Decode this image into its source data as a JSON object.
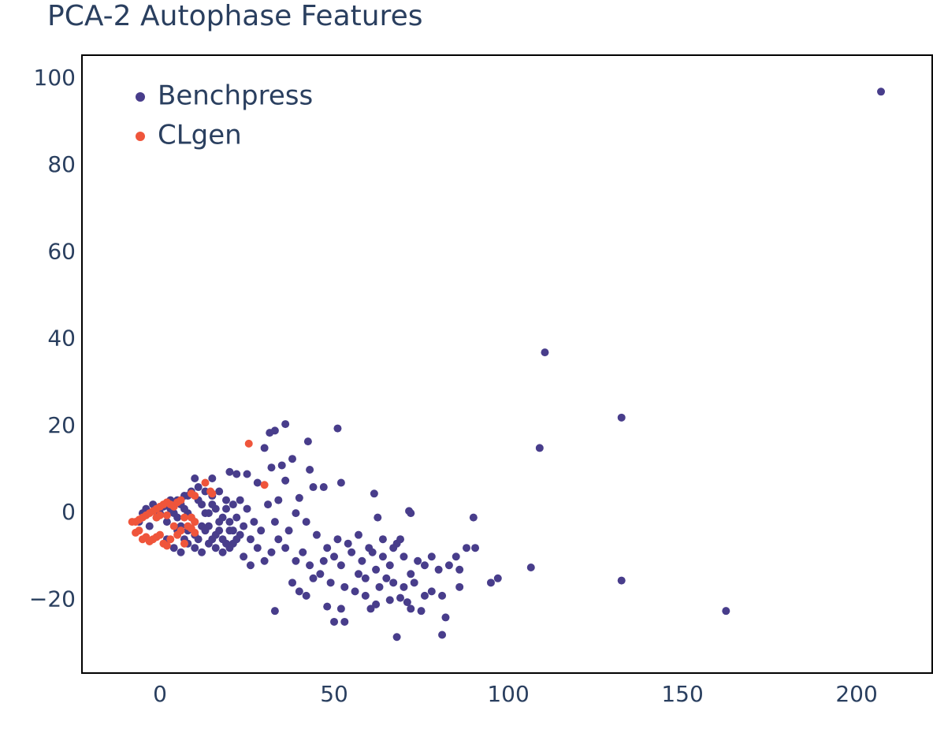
{
  "chart_data": {
    "type": "scatter",
    "title": "PCA-2 Autophase Features",
    "xlim": [
      -22.4,
      221.7
    ],
    "ylim": [
      -36.8,
      105.4
    ],
    "xticks": [
      0,
      50,
      100,
      150,
      200
    ],
    "yticks": [
      {
        "value": -20,
        "label": "−20"
      },
      0,
      20,
      40,
      60,
      80,
      100
    ],
    "grid": false,
    "legend": "top left",
    "series": [
      {
        "name": "Benchpress",
        "color": "#483d8b",
        "x": [
          207,
          110.5,
          132.5,
          109,
          132.5,
          162.5,
          106.5,
          97,
          95,
          90,
          90.5,
          88,
          86,
          86,
          81,
          68,
          82,
          81,
          33,
          50,
          53,
          48,
          52,
          62,
          66,
          69,
          72,
          71,
          75,
          78,
          60.5,
          51,
          36,
          33,
          31.5,
          42.5,
          30,
          38,
          32,
          35,
          43,
          44,
          52,
          47,
          61.5,
          71.5,
          72,
          62.5,
          42,
          39,
          40,
          36,
          28,
          25,
          20,
          22,
          15,
          10,
          34,
          31,
          45,
          48,
          50,
          52,
          55,
          57,
          58,
          60,
          62,
          64,
          66,
          68,
          70,
          72,
          74,
          76,
          78,
          80,
          83,
          85,
          46,
          49,
          53,
          56,
          59,
          63,
          65,
          67,
          70,
          73,
          41,
          43,
          47,
          51,
          54,
          57,
          61,
          64,
          67,
          69,
          38,
          40,
          42,
          44,
          39,
          36,
          34,
          32,
          30,
          28,
          26,
          24,
          29,
          27,
          25,
          23,
          33,
          37,
          76,
          59,
          -6,
          -5,
          -4,
          -3,
          -2,
          -1,
          0,
          1,
          2,
          3,
          4,
          5,
          6,
          7,
          8,
          9,
          10,
          11,
          12,
          13,
          14,
          15,
          16,
          17,
          18,
          19,
          20,
          21,
          22,
          23,
          2,
          4,
          6,
          8,
          10,
          12,
          14,
          16,
          18,
          20,
          3,
          5,
          7,
          9,
          11,
          13,
          15,
          17,
          19,
          21,
          8,
          10,
          12,
          14,
          16,
          18,
          20,
          22,
          24,
          26,
          6,
          8,
          11,
          13,
          15,
          17,
          19,
          21,
          5,
          7
        ],
        "values": [
          97,
          37,
          22,
          15,
          -15.5,
          -22.5,
          -12.5,
          -15,
          -16,
          -1,
          -8,
          -8,
          -13,
          -17,
          -28,
          -28.5,
          -24,
          -19,
          -22.5,
          -25,
          -25,
          -21.5,
          -22,
          -21,
          -20,
          -19.5,
          -22,
          -20.5,
          -22.5,
          -18,
          -22,
          19.5,
          20.5,
          19,
          18.5,
          16.5,
          15,
          12.5,
          10.5,
          11,
          10,
          6,
          7,
          6,
          4.5,
          0.5,
          0,
          -1,
          -2,
          0,
          3.5,
          7.5,
          7,
          9,
          9.5,
          9,
          8,
          8,
          3,
          2,
          -5,
          -8,
          -10,
          -12,
          -9,
          -14,
          -11,
          -8,
          -13,
          -10,
          -12,
          -7,
          -10,
          -14,
          -11,
          -12,
          -10,
          -13,
          -12,
          -10,
          -14,
          -16,
          -17,
          -18,
          -15,
          -17,
          -15,
          -16,
          -17,
          -16,
          -9,
          -12,
          -11,
          -6,
          -7,
          -5,
          -9,
          -6,
          -8,
          -6,
          -16,
          -18,
          -19,
          -15,
          -11,
          -8,
          -6,
          -9,
          -11,
          -8,
          -12,
          -10,
          -4,
          -2,
          1,
          3,
          -2,
          -4,
          -19,
          -19,
          -2,
          0,
          1,
          -3,
          2,
          -1,
          0,
          1.5,
          -2,
          3,
          0,
          -4,
          2,
          -6,
          4,
          -1,
          -8,
          3,
          -3,
          0,
          -7,
          2,
          -5,
          -2,
          -9,
          1,
          -4,
          -7,
          -1,
          -5,
          -6,
          -8,
          -9,
          -7,
          -5,
          -9,
          -3,
          -8,
          -6,
          -2,
          1,
          3,
          4,
          5,
          6,
          5,
          4,
          5,
          3,
          2,
          0,
          -2,
          2,
          0,
          1,
          -1,
          -8,
          -6,
          -3,
          -6,
          -3,
          -4,
          -6,
          -4,
          -6,
          -4,
          -7,
          -4,
          -1,
          1
        ]
      },
      {
        "name": "CLgen",
        "color": "#ef553b",
        "x": [
          25.5,
          30,
          13,
          14.5,
          15,
          10,
          9,
          -8,
          -7,
          -6,
          -5,
          -4,
          -3,
          -2,
          -1,
          0,
          1,
          2,
          3,
          4,
          5,
          6,
          -1,
          0,
          2,
          -7,
          -6,
          -5,
          -4,
          -3,
          -2,
          -1,
          0,
          1,
          2,
          3,
          5,
          6,
          7,
          8,
          9,
          10,
          10,
          7,
          9,
          4
        ],
        "values": [
          16,
          6.5,
          7,
          5,
          4.5,
          4,
          4.5,
          -2,
          -2,
          -1.5,
          -1,
          -0.5,
          0,
          0.5,
          1,
          1.5,
          2,
          2.5,
          2,
          1.5,
          2.5,
          3,
          -1,
          -0.5,
          -0.5,
          -4.5,
          -4,
          -6,
          -5.5,
          -6.5,
          -6,
          -5.5,
          -5,
          -7,
          -7.5,
          -6,
          -5,
          -4,
          -7,
          -3,
          -3.5,
          -4.5,
          -2,
          -1,
          -1,
          -3
        ]
      }
    ]
  }
}
